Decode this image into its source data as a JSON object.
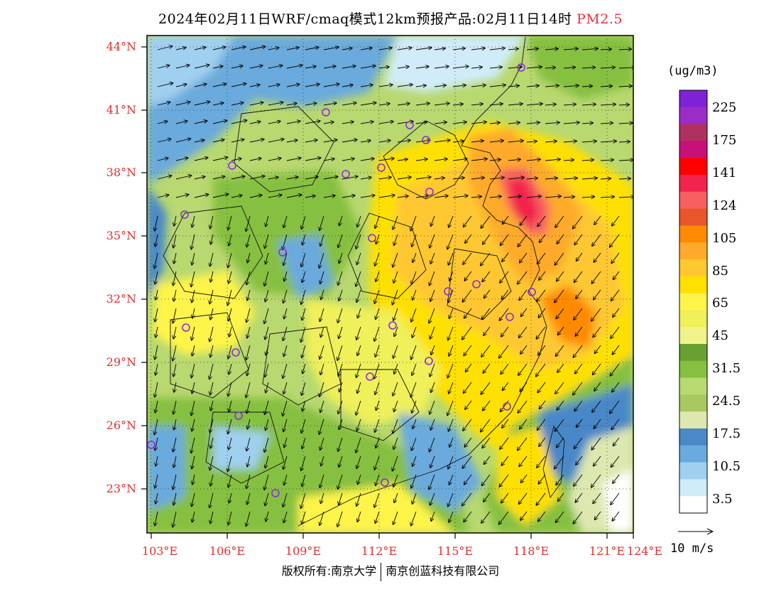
{
  "title": {
    "main": "2024年02月11日WRF/cmaq模式12km预报产品:02月11日14时",
    "pollutant": "PM2.5"
  },
  "legend": {
    "unit": "(ug/m3)",
    "labels": [
      "225",
      "175",
      "141",
      "124",
      "105",
      "85",
      "65",
      "45",
      "31.5",
      "24.5",
      "17.5",
      "10.5",
      "3.5"
    ],
    "colors": [
      "#7e22d6",
      "#9c2cc8",
      "#b03060",
      "#c8107a",
      "#ff0000",
      "#f2234c",
      "#f76060",
      "#e8562a",
      "#ff8a00",
      "#ffaa2a",
      "#ffc830",
      "#ffe000",
      "#fff44a",
      "#eff05a",
      "#f2f28a",
      "#6aa032",
      "#86c040",
      "#b8d870",
      "#a8c860",
      "#dde8b0",
      "#4a88c8",
      "#6aaadc",
      "#a0d0f0",
      "#d0ecf8",
      "#ffffff"
    ]
  },
  "axes": {
    "lat_labels": [
      "44°N",
      "41°N",
      "38°N",
      "35°N",
      "32°N",
      "29°N",
      "26°N",
      "23°N"
    ],
    "lon_labels": [
      "103°E",
      "106°E",
      "109°E",
      "112°E",
      "115°E",
      "118°E",
      "121°E",
      "124°E"
    ]
  },
  "wind_reference": "10 m/s",
  "copyright": {
    "left": "版权所有:南京大学",
    "right": "南京创蓝科技有限公司"
  },
  "colors": {
    "axis_label": "#e03030",
    "station_marker": "#8a2be2"
  }
}
